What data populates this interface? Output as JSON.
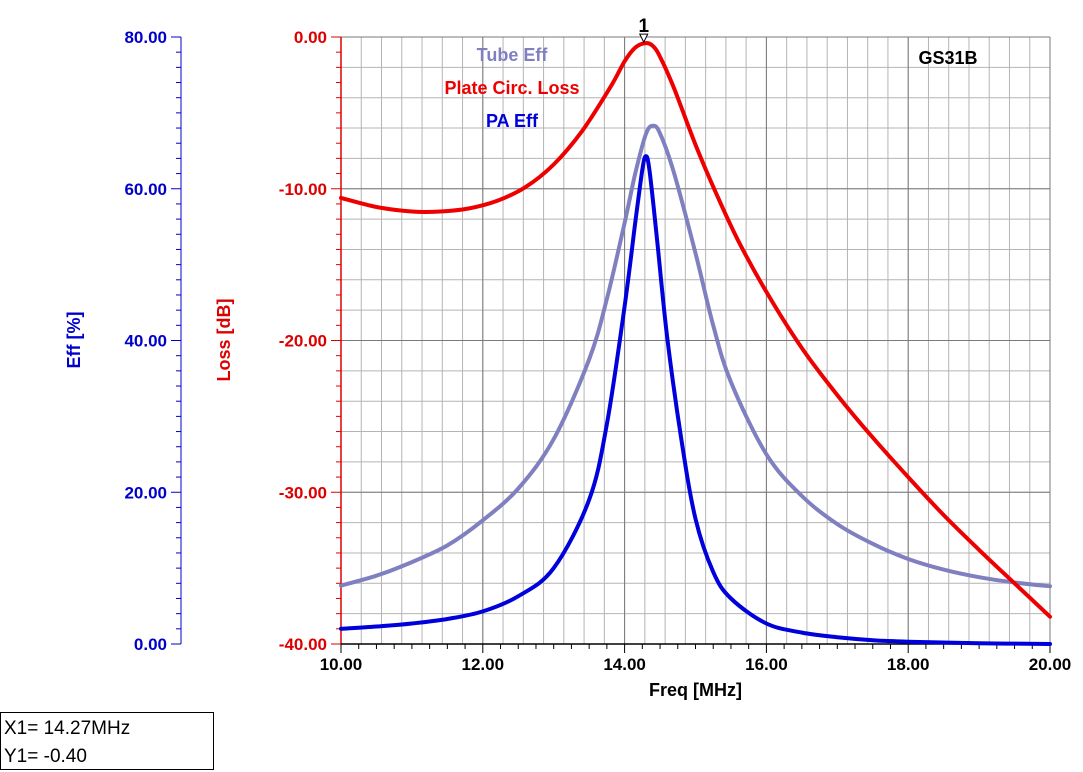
{
  "chart_data": {
    "type": "line",
    "title": "GS31B",
    "xlabel": "Freq [MHz]",
    "xlim": [
      10,
      20
    ],
    "x_ticks": [
      "10.00",
      "12.00",
      "14.00",
      "16.00",
      "18.00",
      "20.00"
    ],
    "y_axes": [
      {
        "label": "Eff [%]",
        "ylim": [
          0,
          80
        ],
        "ticks": [
          "0.00",
          "20.00",
          "40.00",
          "60.00",
          "80.00"
        ],
        "color": "#0000cc"
      },
      {
        "label": "Loss [dB]",
        "ylim": [
          -40,
          0
        ],
        "ticks": [
          "-40.00",
          "-30.00",
          "-20.00",
          "-10.00",
          "0.00"
        ],
        "color": "#dd0000"
      }
    ],
    "grid": true,
    "series": [
      {
        "name": "Tube Eff",
        "axis": "Eff [%]",
        "color": "#8080c0",
        "x": [
          10,
          10.5,
          11,
          11.5,
          12,
          12.5,
          13,
          13.5,
          13.75,
          14,
          14.15,
          14.3,
          14.4,
          14.5,
          14.7,
          15,
          15.25,
          15.5,
          16,
          16.5,
          17,
          17.5,
          18,
          18.5,
          19,
          19.5,
          20
        ],
        "values": [
          7.7,
          9.0,
          10.8,
          13.0,
          16.3,
          20.5,
          27.0,
          37.5,
          45.5,
          55.5,
          62.0,
          67.2,
          68.3,
          67.3,
          62.0,
          51.5,
          42.0,
          34.5,
          25.0,
          19.5,
          15.8,
          13.2,
          11.2,
          9.8,
          8.8,
          8.1,
          7.6
        ]
      },
      {
        "name": "Plate Circ. Loss",
        "axis": "Loss [dB]",
        "color": "#ee0000",
        "x": [
          10,
          10.5,
          11,
          11.4,
          11.8,
          12.2,
          12.6,
          13,
          13.4,
          13.8,
          14,
          14.15,
          14.3,
          14.4,
          14.5,
          14.7,
          15,
          15.3,
          15.6,
          16,
          16.5,
          17,
          17.5,
          18,
          18.5,
          19,
          19.5,
          20
        ],
        "values": [
          -10.6,
          -11.2,
          -11.5,
          -11.5,
          -11.3,
          -10.8,
          -9.9,
          -8.4,
          -6.2,
          -3.3,
          -1.6,
          -0.7,
          -0.4,
          -0.6,
          -1.3,
          -3.4,
          -7.1,
          -10.4,
          -13.4,
          -16.8,
          -20.5,
          -23.6,
          -26.4,
          -29.0,
          -31.5,
          -33.8,
          -36.0,
          -38.2
        ]
      },
      {
        "name": "PA Eff",
        "axis": "Eff [%]",
        "color": "#0000dd",
        "x": [
          10,
          10.5,
          11,
          11.5,
          12,
          12.5,
          13,
          13.5,
          13.75,
          14,
          14.15,
          14.25,
          14.3,
          14.35,
          14.45,
          14.6,
          14.8,
          15,
          15.25,
          15.5,
          16,
          16.5,
          17,
          17.5,
          18,
          19,
          20
        ],
        "values": [
          2.0,
          2.3,
          2.7,
          3.3,
          4.3,
          6.3,
          10.0,
          19.0,
          29.0,
          44.5,
          55.5,
          62.5,
          64.3,
          62.5,
          54.0,
          40.5,
          27.0,
          16.5,
          9.5,
          6.0,
          2.7,
          1.5,
          0.9,
          0.5,
          0.3,
          0.1,
          0.0
        ]
      }
    ],
    "marker": {
      "label": "1",
      "x": 14.27,
      "y": -0.4
    }
  },
  "marker_readout": {
    "x_line": "X1= 14.27MHz",
    "y_line": "Y1= -0.40"
  }
}
